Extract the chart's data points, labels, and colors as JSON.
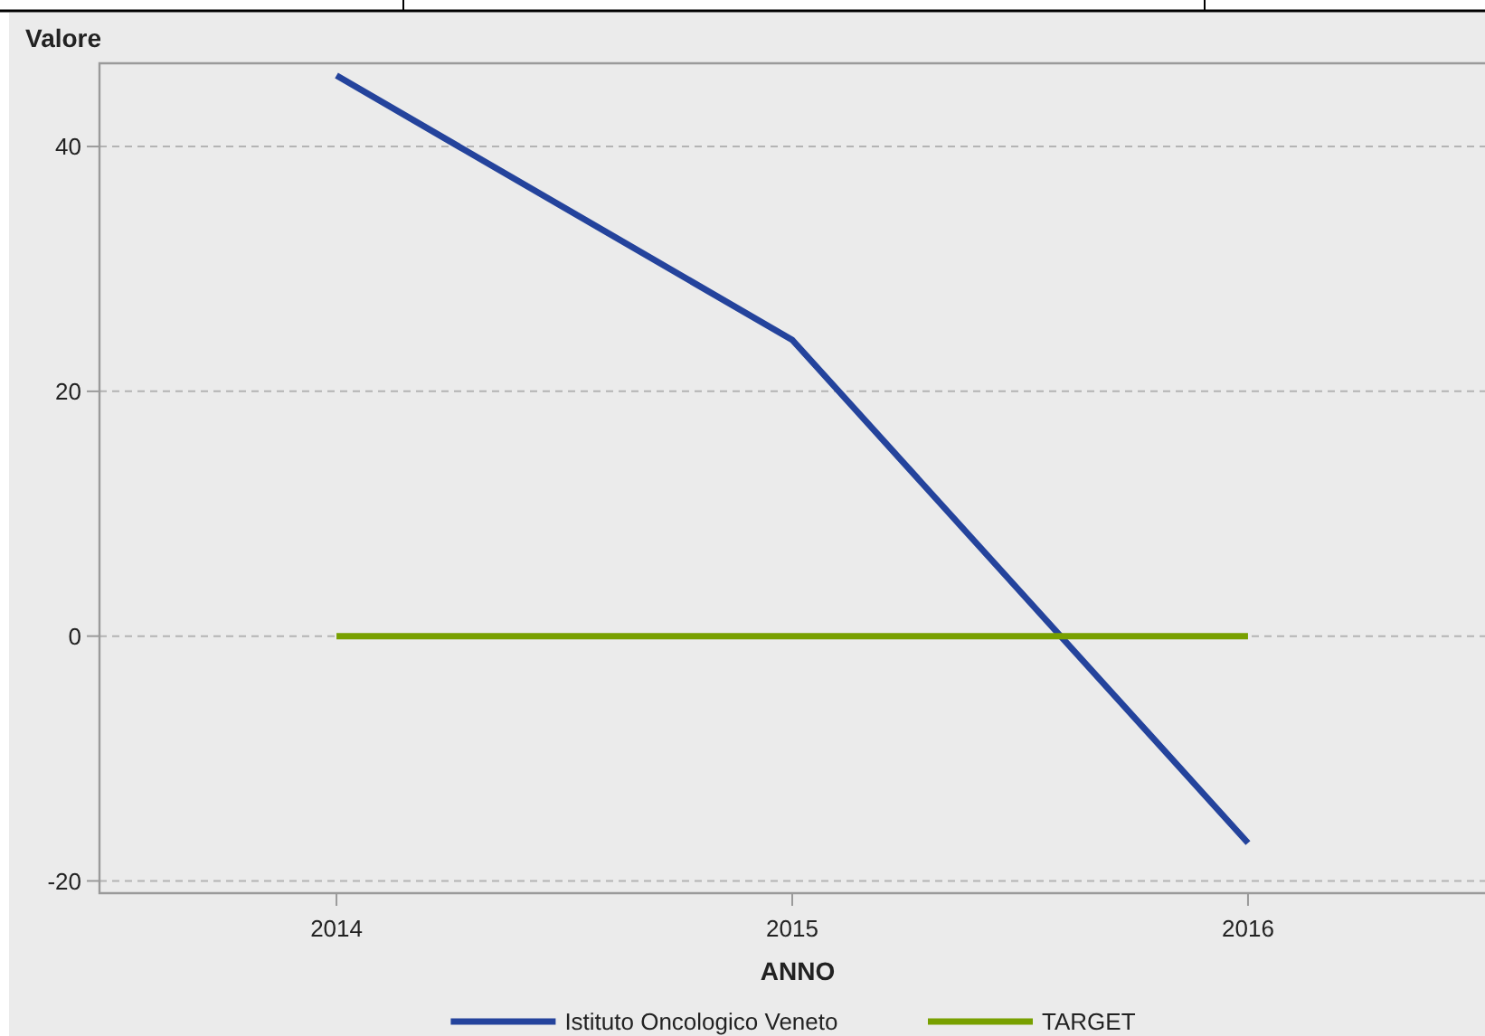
{
  "chart_data": {
    "type": "line",
    "ylabel": "Valore",
    "xlabel": "ANNO",
    "x": [
      2014,
      2015,
      2016
    ],
    "series": [
      {
        "name": "Istituto Oncologico Veneto",
        "color": "#24439c",
        "values": [
          45.8,
          24.2,
          -16.9
        ]
      },
      {
        "name": "TARGET",
        "color": "#78a000",
        "values": [
          0,
          0,
          0
        ]
      }
    ],
    "xlim": [
      2013.48,
      2016.52
    ],
    "xticks": [
      2014,
      2015,
      2016
    ],
    "ylim": [
      -21,
      46.8
    ],
    "yticks": [
      -20,
      0,
      20,
      40
    ],
    "grid": "y",
    "legend": "bottom",
    "marker": "none",
    "line_style": "solid"
  }
}
